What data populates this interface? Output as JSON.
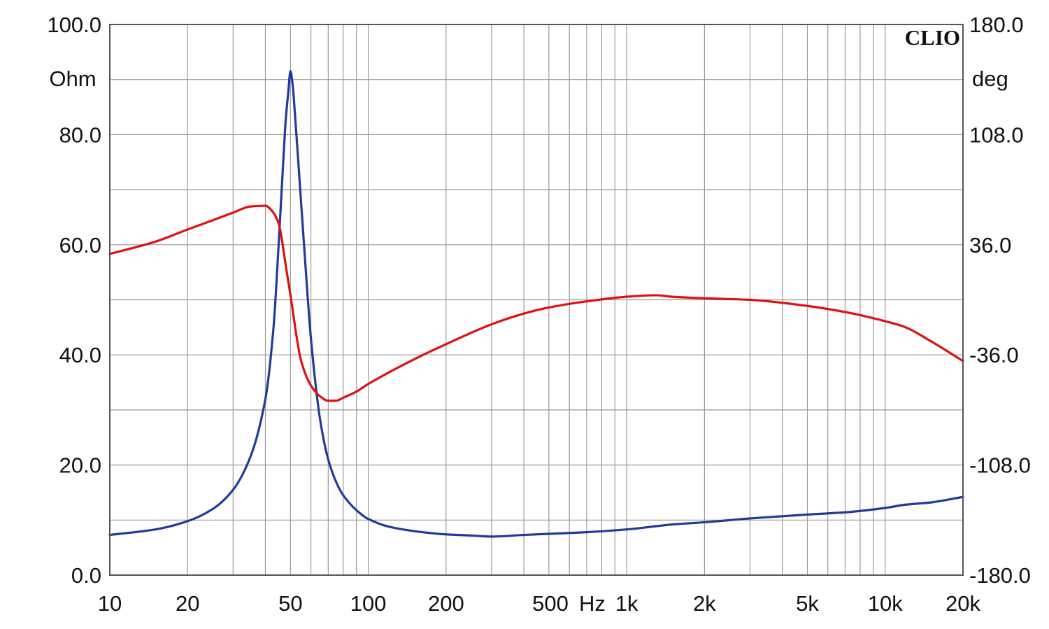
{
  "chart_data": {
    "type": "line",
    "brand": "CLIO",
    "x_scale": "log",
    "xlim": [
      10,
      20000
    ],
    "x_tick_labels": [
      {
        "value": 10,
        "label": "10"
      },
      {
        "value": 20,
        "label": "20"
      },
      {
        "value": 50,
        "label": "50"
      },
      {
        "value": 100,
        "label": "100"
      },
      {
        "value": 200,
        "label": "200"
      },
      {
        "value": 500,
        "label": "500"
      },
      {
        "value": 1000,
        "label": "1k"
      },
      {
        "value": 2000,
        "label": "2k"
      },
      {
        "value": 5000,
        "label": "5k"
      },
      {
        "value": 10000,
        "label": "10k"
      },
      {
        "value": 20000,
        "label": "20k"
      }
    ],
    "x_unit": "Hz",
    "y_left": {
      "unit": "Ohm",
      "ylim": [
        0,
        100
      ],
      "ticks": [
        0,
        20,
        40,
        60,
        80,
        100
      ],
      "tick_labels": [
        "0.0",
        "20.0",
        "40.0",
        "60.0",
        "80.0",
        "100.0"
      ]
    },
    "y_right": {
      "unit": "deg",
      "ylim": [
        -180,
        180
      ],
      "ticks": [
        -180,
        -108,
        -36,
        36,
        108,
        180
      ],
      "tick_labels": [
        "-180.0",
        "-108.0",
        "-36.0",
        "36.0",
        "108.0",
        "180.0"
      ]
    },
    "grid": true,
    "series": [
      {
        "color": "#1f3c9a",
        "axis": "left",
        "x": [
          10,
          15,
          20,
          25,
          30,
          35,
          40,
          43,
          45,
          47,
          48,
          49,
          50,
          51,
          52,
          54,
          57,
          60,
          65,
          70,
          75,
          80,
          90,
          100,
          120,
          150,
          200,
          250,
          300,
          400,
          500,
          700,
          1000,
          1500,
          2000,
          3000,
          5000,
          7000,
          10000,
          12000,
          15000,
          20000
        ],
        "values": [
          7.3,
          8.3,
          9.8,
          12.0,
          15.5,
          21.5,
          32.0,
          45.0,
          60.0,
          76.0,
          83.0,
          87.5,
          91.5,
          89.0,
          84.0,
          73.0,
          57.0,
          43.0,
          28.5,
          21.0,
          17.0,
          14.5,
          11.8,
          10.2,
          8.8,
          8.0,
          7.4,
          7.2,
          7.0,
          7.3,
          7.5,
          7.8,
          8.3,
          9.2,
          9.6,
          10.3,
          11.0,
          11.4,
          12.2,
          12.8,
          13.2,
          14.2
        ]
      },
      {
        "color": "#e01010",
        "axis": "right",
        "x": [
          10,
          15,
          20,
          25,
          30,
          35,
          40,
          42,
          45,
          48,
          50,
          55,
          60,
          65,
          70,
          75,
          80,
          90,
          100,
          150,
          200,
          300,
          400,
          500,
          700,
          1000,
          1300,
          1500,
          2000,
          3000,
          5000,
          7000,
          10000,
          12000,
          15000,
          20000
        ],
        "values": [
          30,
          38,
          46,
          52,
          57,
          61,
          61.5,
          59,
          50,
          22,
          3,
          -40,
          -56,
          -63,
          -66,
          -66,
          -64,
          -60,
          -55,
          -39,
          -29,
          -16,
          -9,
          -5,
          -1,
          2,
          3,
          2,
          1,
          0,
          -4,
          -8,
          -14,
          -18,
          -27,
          -40
        ]
      }
    ]
  }
}
